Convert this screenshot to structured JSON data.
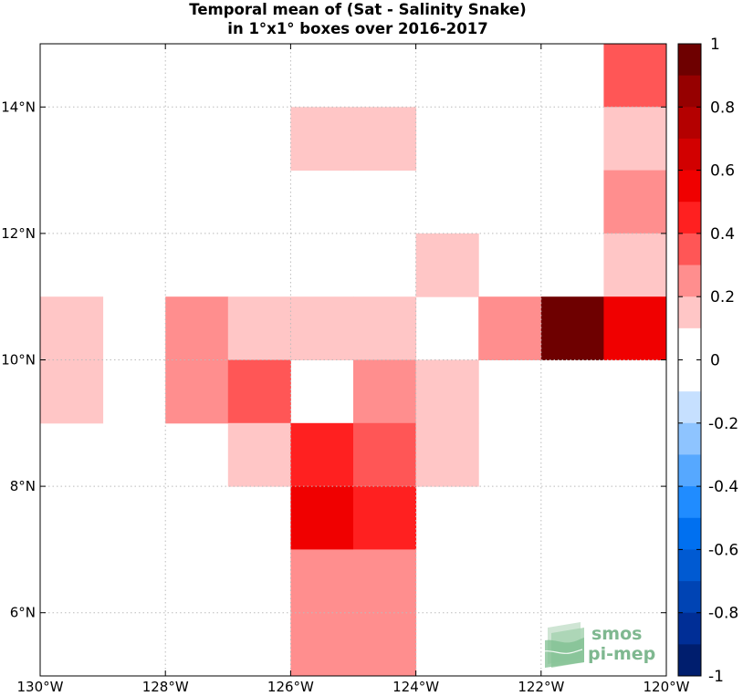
{
  "title": {
    "line1": "Temporal mean of (Sat - Salinity Snake)",
    "line2": "in 1°x1° boxes over 2016-2017"
  },
  "logo": {
    "line1": "smos",
    "line2": "pi-mep"
  },
  "chart_data": {
    "type": "heatmap",
    "xlabel": "",
    "ylabel": "",
    "xlim": [
      -130,
      -120
    ],
    "ylim": [
      5,
      15
    ],
    "x_ticks": [
      {
        "value": -130,
        "label": "130°W"
      },
      {
        "value": -128,
        "label": "128°W"
      },
      {
        "value": -126,
        "label": "126°W"
      },
      {
        "value": -124,
        "label": "124°W"
      },
      {
        "value": -122,
        "label": "122°W"
      },
      {
        "value": -120,
        "label": "120°W"
      }
    ],
    "y_ticks": [
      {
        "value": 6,
        "label": "6°N"
      },
      {
        "value": 8,
        "label": "8°N"
      },
      {
        "value": 10,
        "label": "10°N"
      },
      {
        "value": 12,
        "label": "12°N"
      },
      {
        "value": 14,
        "label": "14°N"
      }
    ],
    "grid": true,
    "colorbar": {
      "range": [
        -1,
        1
      ],
      "ticks": [
        "1",
        "0.8",
        "0.6",
        "0.4",
        "0.2",
        "0",
        "-0.2",
        "-0.4",
        "-0.6",
        "-0.8",
        "-1"
      ],
      "colors": [
        "#6e0000",
        "#960000",
        "#b40000",
        "#d20000",
        "#f00000",
        "#ff2020",
        "#ff5656",
        "#ff8e8e",
        "#ffc6c6",
        "#ffffff",
        "#ffffff",
        "#c6e0ff",
        "#8ec4ff",
        "#56a8ff",
        "#208cff",
        "#0070f0",
        "#005ad2",
        "#0044b4",
        "#002e96",
        "#001e6e"
      ]
    },
    "cells": [
      {
        "lon": -129,
        "lat": 10,
        "value": 0.15
      },
      {
        "lon": -129,
        "lat": 9,
        "value": 0.15
      },
      {
        "lon": -127,
        "lat": 10,
        "value": 0.25
      },
      {
        "lon": -127,
        "lat": 9,
        "value": 0.25
      },
      {
        "lon": -126,
        "lat": 10,
        "value": 0.15
      },
      {
        "lon": -126,
        "lat": 9,
        "value": 0.35
      },
      {
        "lon": -126,
        "lat": 8,
        "value": 0.15
      },
      {
        "lon": -125,
        "lat": 13,
        "value": 0.15
      },
      {
        "lon": -125,
        "lat": 10,
        "value": 0.15
      },
      {
        "lon": -125,
        "lat": 8,
        "value": 0.45
      },
      {
        "lon": -125,
        "lat": 7,
        "value": 0.55
      },
      {
        "lon": -125,
        "lat": 6,
        "value": 0.25
      },
      {
        "lon": -125,
        "lat": 5,
        "value": 0.25
      },
      {
        "lon": -124,
        "lat": 13,
        "value": 0.15
      },
      {
        "lon": -124,
        "lat": 10,
        "value": 0.15
      },
      {
        "lon": -124,
        "lat": 9,
        "value": 0.25
      },
      {
        "lon": -124,
        "lat": 8,
        "value": 0.35
      },
      {
        "lon": -124,
        "lat": 7,
        "value": 0.45
      },
      {
        "lon": -124,
        "lat": 6,
        "value": 0.25
      },
      {
        "lon": -124,
        "lat": 5,
        "value": 0.25
      },
      {
        "lon": -123,
        "lat": 11,
        "value": 0.15
      },
      {
        "lon": -123,
        "lat": 9,
        "value": 0.15
      },
      {
        "lon": -123,
        "lat": 8,
        "value": 0.15
      },
      {
        "lon": -122,
        "lat": 10,
        "value": 0.25
      },
      {
        "lon": -121,
        "lat": 10,
        "value": 0.95
      },
      {
        "lon": -120,
        "lat": 14,
        "value": 0.35
      },
      {
        "lon": -120,
        "lat": 13,
        "value": 0.15
      },
      {
        "lon": -120,
        "lat": 12,
        "value": 0.25
      },
      {
        "lon": -120,
        "lat": 11,
        "value": 0.15
      },
      {
        "lon": -120,
        "lat": 10,
        "value": 0.55
      }
    ]
  }
}
